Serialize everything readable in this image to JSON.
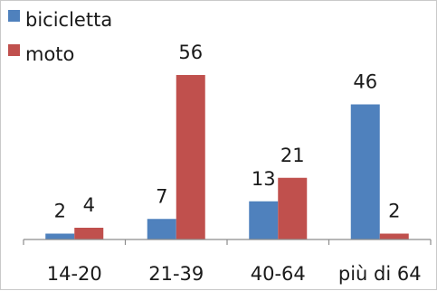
{
  "chart_data": {
    "type": "bar",
    "categories": [
      "14-20",
      "21-39",
      "40-64",
      "più di 64"
    ],
    "series": [
      {
        "name": "bicicletta",
        "color": "#4f81bd",
        "values": [
          2,
          7,
          13,
          46
        ]
      },
      {
        "name": "moto",
        "color": "#c0504d",
        "values": [
          4,
          56,
          21,
          2
        ]
      }
    ],
    "data_labels": true,
    "grid": false,
    "legend": "top-left",
    "ylim": [
      0,
      60
    ],
    "title": "",
    "xlabel": "",
    "ylabel": ""
  }
}
